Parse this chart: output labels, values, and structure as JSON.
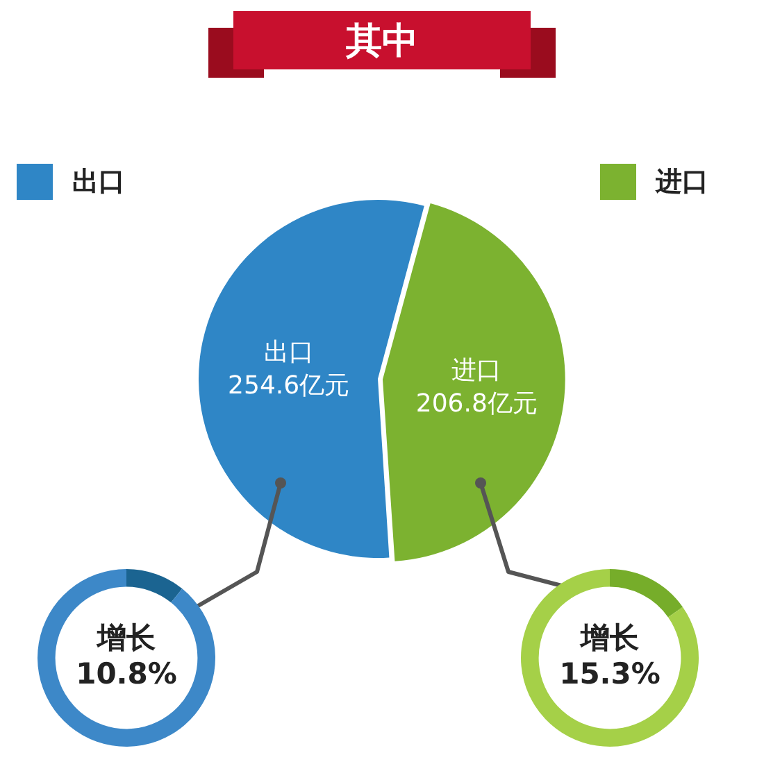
{
  "chart_data": [
    {
      "type": "pie",
      "title": "其中",
      "categories": [
        "出口",
        "进口"
      ],
      "values": [
        254.6,
        206.8
      ],
      "colors": [
        "#2f86c6",
        "#7cb230"
      ],
      "value_labels": [
        "254.6亿元",
        "206.8亿元"
      ],
      "legend": "top"
    },
    {
      "type": "donut",
      "categories": [
        null,
        null
      ],
      "values": [
        10.8,
        89.2
      ],
      "colors": [
        "#1b6491",
        "#3d88c8"
      ],
      "annotations": [
        "增长",
        "10.8%"
      ]
    },
    {
      "type": "donut",
      "categories": [
        null,
        null
      ],
      "values": [
        15.3,
        84.7
      ],
      "colors": [
        "#76ad2a",
        "#a5d048"
      ],
      "annotations": [
        "增长",
        "15.3%"
      ]
    }
  ]
}
